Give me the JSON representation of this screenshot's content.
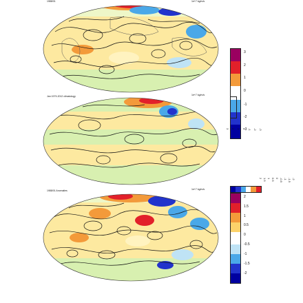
{
  "panels": [
    {
      "title": "1988/01",
      "units": "1e+7 kg/m/s"
    },
    {
      "title": "Jan 1979-2012 climatology",
      "units": "1e+7 kg/m/s"
    },
    {
      "title": "1988/01 Anomalies",
      "units": "1e+7 kg/m/s"
    }
  ],
  "scale_upper": {
    "labels": [
      "3",
      "2",
      "1",
      "0",
      "-1",
      "-2",
      "-3"
    ]
  },
  "scale_upper_rotated": {
    "labels": [
      "3",
      "2",
      "1",
      "0",
      "-1",
      "-2",
      "-3"
    ]
  },
  "scale_lower": {
    "labels": [
      "2",
      "1.5",
      "1",
      "0.5",
      "0",
      "-0.5",
      "-1",
      "-1.5",
      "-2"
    ]
  },
  "scale_lower_rotated": {
    "labels": [
      "2",
      "1.5",
      "1",
      "0.5",
      "0",
      "-0.5",
      "-1",
      "-1.5",
      "-2"
    ]
  },
  "colors": {
    "ocean": "#fde9a0",
    "land": "#d8f0b0",
    "warm_strong": "#e2202a",
    "warm": "#f39a3a",
    "cool": "#4aa8e8",
    "cool_strong": "#2233cc",
    "scale_top": "#9a0060",
    "scale_bottom": "#0000a0"
  }
}
